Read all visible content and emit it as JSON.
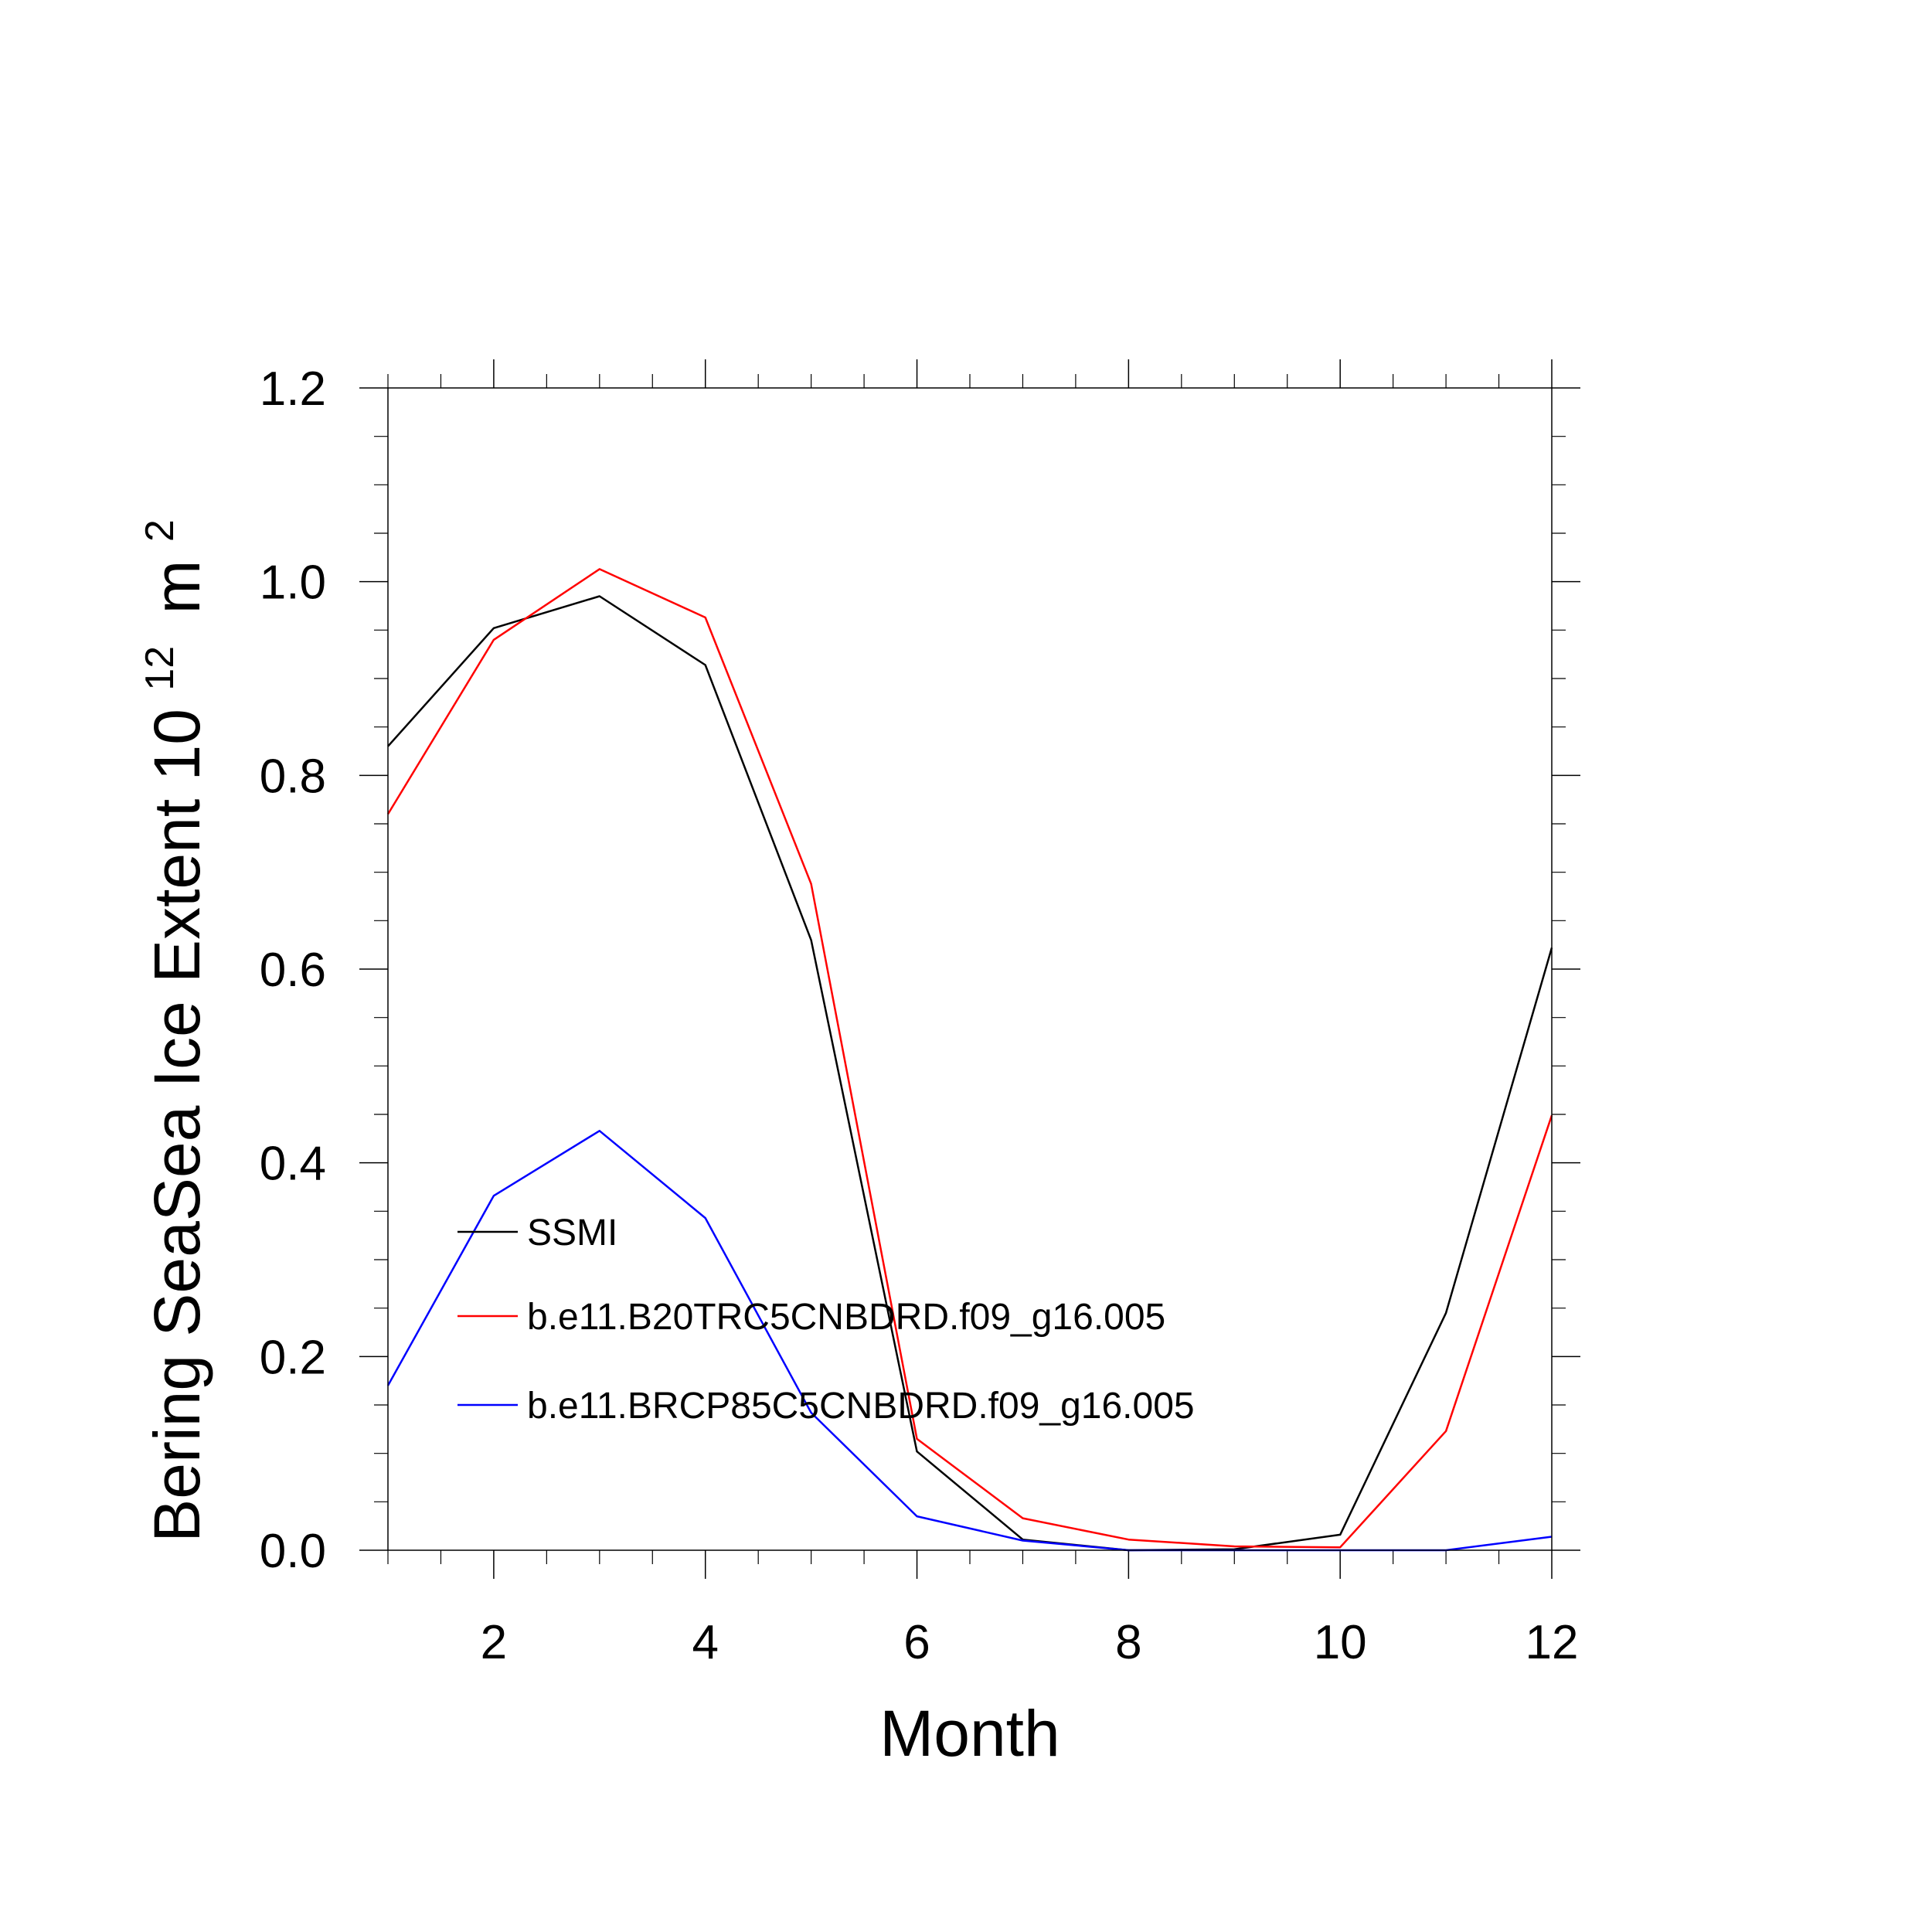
{
  "chart_data": {
    "type": "line",
    "title": "",
    "xlabel": "Month",
    "ylabel_text": "Bering SeaSea Ice Extent 10",
    "ylabel_sup": "12",
    "ylabel_unit": "m",
    "ylabel_unit_sup": "2",
    "x": [
      1,
      2,
      3,
      4,
      5,
      6,
      7,
      8,
      9,
      10,
      11,
      12
    ],
    "xlim": [
      1,
      12
    ],
    "ylim": [
      0,
      1.2
    ],
    "xticks": [
      2,
      4,
      6,
      8,
      10,
      12
    ],
    "xtick_labels": [
      "2",
      "4",
      "6",
      "8",
      "10",
      "12"
    ],
    "yticks": [
      0,
      0.2,
      0.4,
      0.6,
      0.8,
      1.0,
      1.2
    ],
    "ytick_labels": [
      "0.0",
      "0.2",
      "0.4",
      "0.6",
      "0.8",
      "1.0",
      "1.2"
    ],
    "grid": false,
    "legend_position": "lower-left",
    "series": [
      {
        "name": "SSMI",
        "color": "#000000",
        "values": [
          0.83,
          0.952,
          0.985,
          0.914,
          0.63,
          0.102,
          0.011,
          0.0,
          0.001,
          0.016,
          0.245,
          0.622
        ]
      },
      {
        "name": "b.e11.B20TRC5CNBDRD.f09_g16.005",
        "color": "#ff0000",
        "values": [
          0.76,
          0.94,
          1.013,
          0.963,
          0.688,
          0.115,
          0.033,
          0.011,
          0.004,
          0.003,
          0.123,
          0.449
        ]
      },
      {
        "name": "b.e11.BRCP85C5CNBDRD.f09_g16.005",
        "color": "#0000ff",
        "values": [
          0.17,
          0.366,
          0.433,
          0.343,
          0.142,
          0.035,
          0.01,
          0.0,
          0.0,
          0.0,
          0.0,
          0.014
        ]
      }
    ]
  }
}
